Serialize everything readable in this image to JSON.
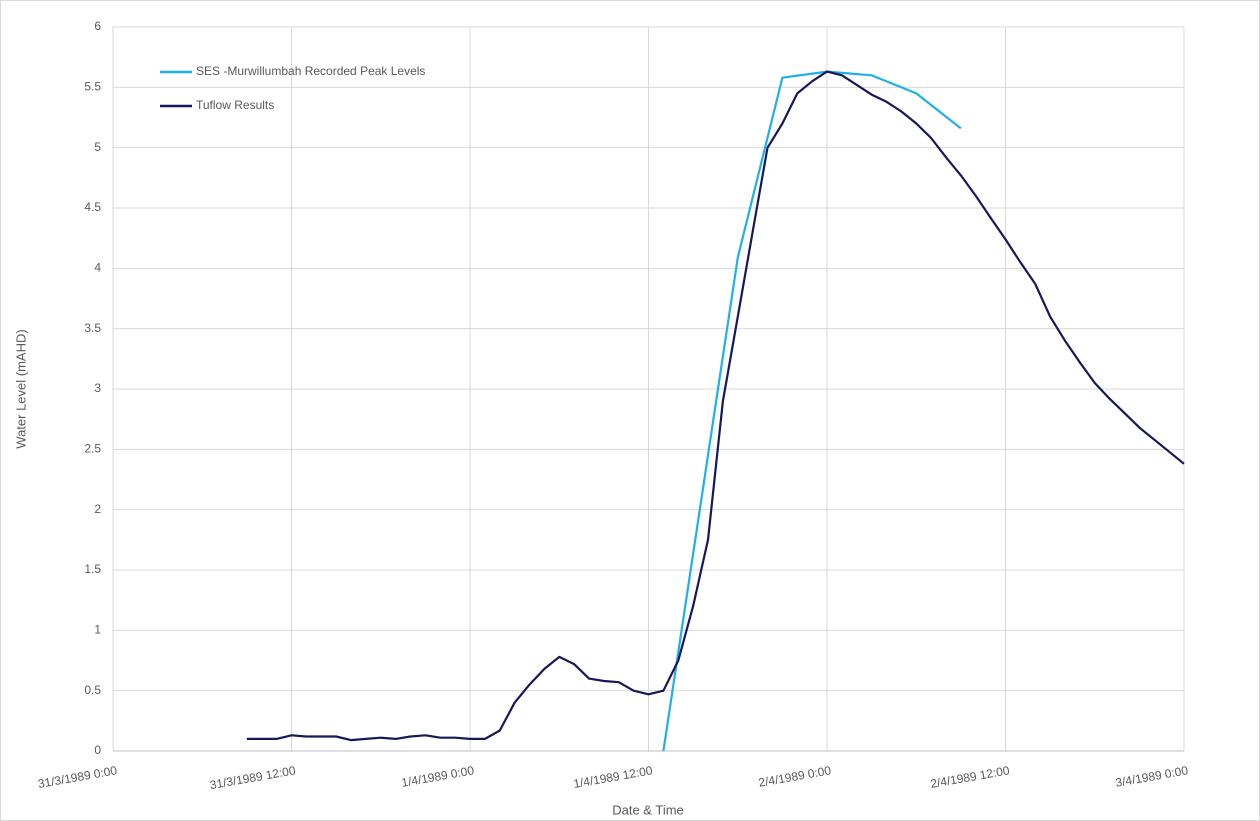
{
  "chart_data": {
    "type": "line",
    "xlabel": "Date & Time",
    "ylabel": "Water Level (mAHD)",
    "xlim": [
      "31/3/1989 0:00",
      "3/4/1989 0:00"
    ],
    "xticks": [
      "31/3/1989 0:00",
      "31/3/1989 12:00",
      "1/4/1989 0:00",
      "1/4/1989 12:00",
      "2/4/1989 0:00",
      "2/4/1989 12:00",
      "3/4/1989 0:00"
    ],
    "ylim": [
      0,
      6
    ],
    "yticks": [
      0,
      0.5,
      1,
      1.5,
      2,
      2.5,
      3,
      3.5,
      4,
      4.5,
      5,
      5.5,
      6
    ],
    "grid": true,
    "legend": "upper left",
    "series": [
      {
        "name": "SES -Murwillumbah Recorded Peak Levels",
        "color": "#1fb0e8",
        "x": [
          "1/4/1989 13:00",
          "1/4/1989 18:00",
          "1/4/1989 21:00",
          "2/4/1989 0:00",
          "2/4/1989 3:00",
          "2/4/1989 6:00",
          "2/4/1989 9:00"
        ],
        "values": [
          0,
          4.09,
          5.58,
          5.63,
          5.6,
          5.45,
          5.16
        ]
      },
      {
        "name": "Tuflow Results",
        "color": "#15185a",
        "x": [
          "31/3/1989 9:00",
          "31/3/1989 10:00",
          "31/3/1989 11:00",
          "31/3/1989 12:00",
          "31/3/1989 13:00",
          "31/3/1989 14:00",
          "31/3/1989 15:00",
          "31/3/1989 16:00",
          "31/3/1989 17:00",
          "31/3/1989 18:00",
          "31/3/1989 19:00",
          "31/3/1989 20:00",
          "31/3/1989 21:00",
          "31/3/1989 22:00",
          "31/3/1989 23:00",
          "1/4/1989 0:00",
          "1/4/1989 1:00",
          "1/4/1989 2:00",
          "1/4/1989 3:00",
          "1/4/1989 4:00",
          "1/4/1989 5:00",
          "1/4/1989 6:00",
          "1/4/1989 7:00",
          "1/4/1989 8:00",
          "1/4/1989 9:00",
          "1/4/1989 10:00",
          "1/4/1989 11:00",
          "1/4/1989 12:00",
          "1/4/1989 13:00",
          "1/4/1989 14:00",
          "1/4/1989 15:00",
          "1/4/1989 16:00",
          "1/4/1989 17:00",
          "1/4/1989 18:00",
          "1/4/1989 19:00",
          "1/4/1989 20:00",
          "1/4/1989 21:00",
          "1/4/1989 22:00",
          "1/4/1989 23:00",
          "2/4/1989 0:00",
          "2/4/1989 1:00",
          "2/4/1989 2:00",
          "2/4/1989 3:00",
          "2/4/1989 4:00",
          "2/4/1989 5:00",
          "2/4/1989 6:00",
          "2/4/1989 7:00",
          "2/4/1989 8:00",
          "2/4/1989 9:00",
          "2/4/1989 10:00",
          "2/4/1989 11:00",
          "2/4/1989 12:00",
          "2/4/1989 13:00",
          "2/4/1989 14:00",
          "2/4/1989 15:00",
          "2/4/1989 16:00",
          "2/4/1989 17:00",
          "2/4/1989 18:00",
          "2/4/1989 19:00",
          "2/4/1989 20:00",
          "2/4/1989 21:00",
          "2/4/1989 22:00",
          "2/4/1989 23:00",
          "3/4/1989 0:00"
        ],
        "values": [
          0.1,
          0.1,
          0.1,
          0.13,
          0.12,
          0.12,
          0.12,
          0.09,
          0.1,
          0.11,
          0.1,
          0.12,
          0.13,
          0.11,
          0.11,
          0.1,
          0.1,
          0.17,
          0.4,
          0.55,
          0.68,
          0.78,
          0.72,
          0.6,
          0.58,
          0.57,
          0.5,
          0.47,
          0.5,
          0.75,
          1.2,
          1.75,
          2.9,
          3.6,
          4.3,
          5.0,
          5.2,
          5.45,
          5.55,
          5.63,
          5.6,
          5.52,
          5.44,
          5.38,
          5.3,
          5.2,
          5.08,
          4.92,
          4.77,
          4.6,
          4.42,
          4.24,
          4.05,
          3.87,
          3.6,
          3.4,
          3.22,
          3.05,
          2.92,
          2.8,
          2.68,
          2.58,
          2.48,
          2.38
        ]
      }
    ]
  }
}
